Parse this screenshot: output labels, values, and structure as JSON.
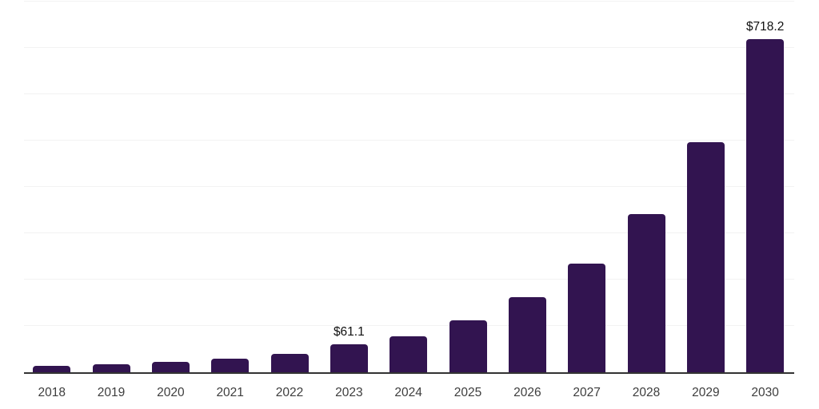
{
  "chart_data": {
    "type": "bar",
    "categories": [
      "2018",
      "2019",
      "2020",
      "2021",
      "2022",
      "2023",
      "2024",
      "2025",
      "2026",
      "2027",
      "2028",
      "2029",
      "2030"
    ],
    "values": [
      13,
      16.5,
      22,
      29,
      40,
      61.1,
      77,
      112,
      162,
      235,
      342,
      496,
      718.2
    ],
    "data_labels": [
      null,
      null,
      null,
      null,
      null,
      "$61.1",
      null,
      null,
      null,
      null,
      null,
      null,
      "$718.2"
    ],
    "ylim": [
      0,
      800
    ],
    "gridline_step": 100,
    "grid": "horizontal",
    "legend": "none",
    "y_axis_labels_visible": false,
    "xlabel": "",
    "ylabel": "",
    "colors": {
      "bar": "#321450",
      "axis_line": "#333333",
      "gridline": "#f2f2f2",
      "category_label": "#3d3d3d",
      "value_label": "#111111",
      "background": "#ffffff"
    }
  }
}
